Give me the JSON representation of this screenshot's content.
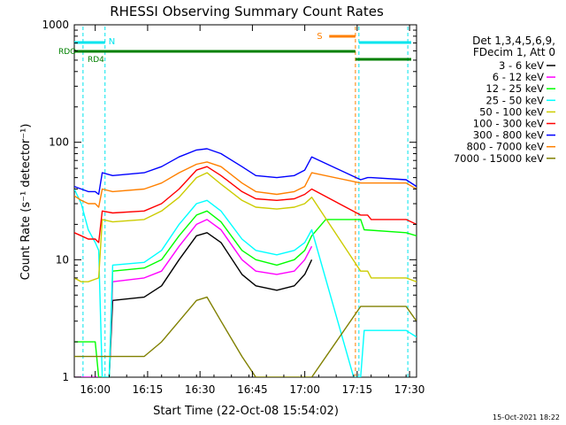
{
  "chart_data": {
    "type": "line",
    "title": "RHESSI Observing Summary Count Rates",
    "xlabel": "Start Time (22-Oct-08 15:54:02)",
    "ylabel": "Count Rate (s⁻¹ detector⁻¹)",
    "y_scale": "log",
    "ylim": [
      1,
      1000
    ],
    "xlim_minutes": [
      0,
      98
    ],
    "x_tick_labels": [
      "16:00",
      "16:15",
      "16:30",
      "16:45",
      "17:00",
      "17:15",
      "17:30"
    ],
    "x_tick_minutes": [
      6,
      21,
      36,
      51,
      66,
      81,
      96
    ],
    "y_tick_labels": [
      "1",
      "10",
      "100",
      "1000"
    ],
    "y_tick_values": [
      1,
      10,
      100,
      1000
    ],
    "legend_header": [
      "Det 1,3,4,5,6,9,",
      "FDecim 1, Att 0"
    ],
    "legend_position": "right",
    "series": [
      {
        "name": "3 - 6 keV",
        "color": "#000000",
        "points": [
          [
            0,
            0
          ],
          [
            10,
            0
          ],
          [
            11,
            4.5
          ],
          [
            20,
            4.8
          ],
          [
            25,
            6
          ],
          [
            30,
            10
          ],
          [
            35,
            16
          ],
          [
            38,
            17
          ],
          [
            42,
            14
          ],
          [
            48,
            7.5
          ],
          [
            52,
            6
          ],
          [
            58,
            5.5
          ],
          [
            63,
            6
          ],
          [
            66,
            7.5
          ],
          [
            68,
            10
          ]
        ]
      },
      {
        "name": "6 - 12 keV",
        "color": "#ff00ff",
        "points": [
          [
            0,
            0
          ],
          [
            10,
            0
          ],
          [
            11,
            6.5
          ],
          [
            20,
            7
          ],
          [
            25,
            8
          ],
          [
            30,
            13
          ],
          [
            35,
            20
          ],
          [
            38,
            22
          ],
          [
            42,
            18
          ],
          [
            48,
            10
          ],
          [
            52,
            8
          ],
          [
            58,
            7.5
          ],
          [
            63,
            8
          ],
          [
            66,
            10
          ],
          [
            68,
            13
          ]
        ]
      },
      {
        "name": "12 - 25 keV",
        "color": "#00ff00",
        "points": [
          [
            0,
            2
          ],
          [
            6,
            2
          ],
          [
            7,
            0
          ],
          [
            10,
            0
          ],
          [
            11,
            8
          ],
          [
            20,
            8.5
          ],
          [
            25,
            10
          ],
          [
            30,
            16
          ],
          [
            35,
            24
          ],
          [
            38,
            26
          ],
          [
            42,
            21
          ],
          [
            48,
            12
          ],
          [
            52,
            10
          ],
          [
            58,
            9
          ],
          [
            63,
            10
          ],
          [
            66,
            12
          ],
          [
            68,
            16
          ],
          [
            72,
            22
          ],
          [
            82,
            22
          ],
          [
            83,
            18
          ],
          [
            95,
            17
          ],
          [
            98,
            16
          ]
        ]
      },
      {
        "name": "25 - 50 keV",
        "color": "#00ffff",
        "points": [
          [
            0,
            40
          ],
          [
            2,
            30
          ],
          [
            4,
            18
          ],
          [
            6,
            14
          ],
          [
            7,
            12
          ],
          [
            8,
            0
          ],
          [
            10,
            0
          ],
          [
            11,
            9
          ],
          [
            20,
            9.5
          ],
          [
            25,
            12
          ],
          [
            30,
            20
          ],
          [
            35,
            30
          ],
          [
            38,
            32
          ],
          [
            42,
            26
          ],
          [
            48,
            15
          ],
          [
            52,
            12
          ],
          [
            58,
            11
          ],
          [
            63,
            12
          ],
          [
            66,
            14
          ],
          [
            68,
            18
          ],
          [
            80,
            0
          ],
          [
            82,
            0
          ],
          [
            83,
            2.5
          ],
          [
            95,
            2.5
          ],
          [
            98,
            2.2
          ]
        ]
      },
      {
        "name": "50 - 100 keV",
        "color": "#cccc00",
        "points": [
          [
            0,
            7
          ],
          [
            2,
            6.5
          ],
          [
            4,
            6.5
          ],
          [
            7,
            7
          ],
          [
            8,
            22
          ],
          [
            11,
            21
          ],
          [
            20,
            22
          ],
          [
            25,
            26
          ],
          [
            30,
            34
          ],
          [
            35,
            50
          ],
          [
            38,
            55
          ],
          [
            42,
            44
          ],
          [
            48,
            32
          ],
          [
            52,
            28
          ],
          [
            58,
            27
          ],
          [
            63,
            28
          ],
          [
            66,
            30
          ],
          [
            68,
            34
          ],
          [
            82,
            8
          ],
          [
            84,
            8
          ],
          [
            85,
            7
          ],
          [
            95,
            7
          ],
          [
            98,
            6.5
          ]
        ]
      },
      {
        "name": "100 - 300 keV",
        "color": "#ff0000",
        "points": [
          [
            0,
            17
          ],
          [
            2,
            16
          ],
          [
            4,
            15
          ],
          [
            6,
            15
          ],
          [
            7,
            14
          ],
          [
            8,
            26
          ],
          [
            11,
            25
          ],
          [
            20,
            26
          ],
          [
            25,
            30
          ],
          [
            30,
            40
          ],
          [
            35,
            58
          ],
          [
            38,
            62
          ],
          [
            42,
            52
          ],
          [
            48,
            38
          ],
          [
            52,
            33
          ],
          [
            58,
            32
          ],
          [
            63,
            33
          ],
          [
            66,
            36
          ],
          [
            68,
            40
          ],
          [
            82,
            24
          ],
          [
            84,
            24
          ],
          [
            85,
            22
          ],
          [
            95,
            22
          ],
          [
            98,
            20
          ]
        ]
      },
      {
        "name": "300 - 800 keV",
        "color": "#0000ff",
        "points": [
          [
            0,
            42
          ],
          [
            2,
            40
          ],
          [
            4,
            38
          ],
          [
            6,
            38
          ],
          [
            7,
            36
          ],
          [
            8,
            55
          ],
          [
            11,
            52
          ],
          [
            20,
            55
          ],
          [
            25,
            62
          ],
          [
            30,
            75
          ],
          [
            35,
            86
          ],
          [
            38,
            88
          ],
          [
            42,
            80
          ],
          [
            48,
            62
          ],
          [
            52,
            52
          ],
          [
            58,
            50
          ],
          [
            63,
            52
          ],
          [
            66,
            58
          ],
          [
            68,
            75
          ],
          [
            82,
            48
          ],
          [
            84,
            50
          ],
          [
            85,
            50
          ],
          [
            95,
            48
          ],
          [
            98,
            42
          ]
        ]
      },
      {
        "name": "800 - 7000 keV",
        "color": "#ff8000",
        "points": [
          [
            0,
            35
          ],
          [
            2,
            32
          ],
          [
            4,
            30
          ],
          [
            6,
            30
          ],
          [
            7,
            28
          ],
          [
            8,
            40
          ],
          [
            11,
            38
          ],
          [
            20,
            40
          ],
          [
            25,
            45
          ],
          [
            30,
            55
          ],
          [
            35,
            65
          ],
          [
            38,
            68
          ],
          [
            42,
            62
          ],
          [
            48,
            45
          ],
          [
            52,
            38
          ],
          [
            58,
            36
          ],
          [
            63,
            38
          ],
          [
            66,
            42
          ],
          [
            68,
            55
          ],
          [
            82,
            45
          ],
          [
            84,
            45
          ],
          [
            85,
            45
          ],
          [
            95,
            45
          ],
          [
            98,
            40
          ]
        ]
      },
      {
        "name": "7000 - 15000 keV",
        "color": "#808000",
        "points": [
          [
            0,
            1.5
          ],
          [
            8,
            1.5
          ],
          [
            20,
            1.5
          ],
          [
            25,
            2
          ],
          [
            30,
            3
          ],
          [
            35,
            4.5
          ],
          [
            38,
            4.8
          ],
          [
            42,
            3
          ],
          [
            48,
            1.5
          ],
          [
            52,
            1
          ],
          [
            58,
            1
          ],
          [
            63,
            1
          ],
          [
            66,
            1
          ],
          [
            68,
            1
          ],
          [
            82,
            4
          ],
          [
            95,
            4
          ],
          [
            98,
            3
          ]
        ]
      }
    ],
    "annotations": {
      "rdo_label": "RDO",
      "rd4_label": "RD4",
      "n_label": "N",
      "s_label": "S"
    },
    "footer_date": "15-Oct-2021 18:22"
  }
}
